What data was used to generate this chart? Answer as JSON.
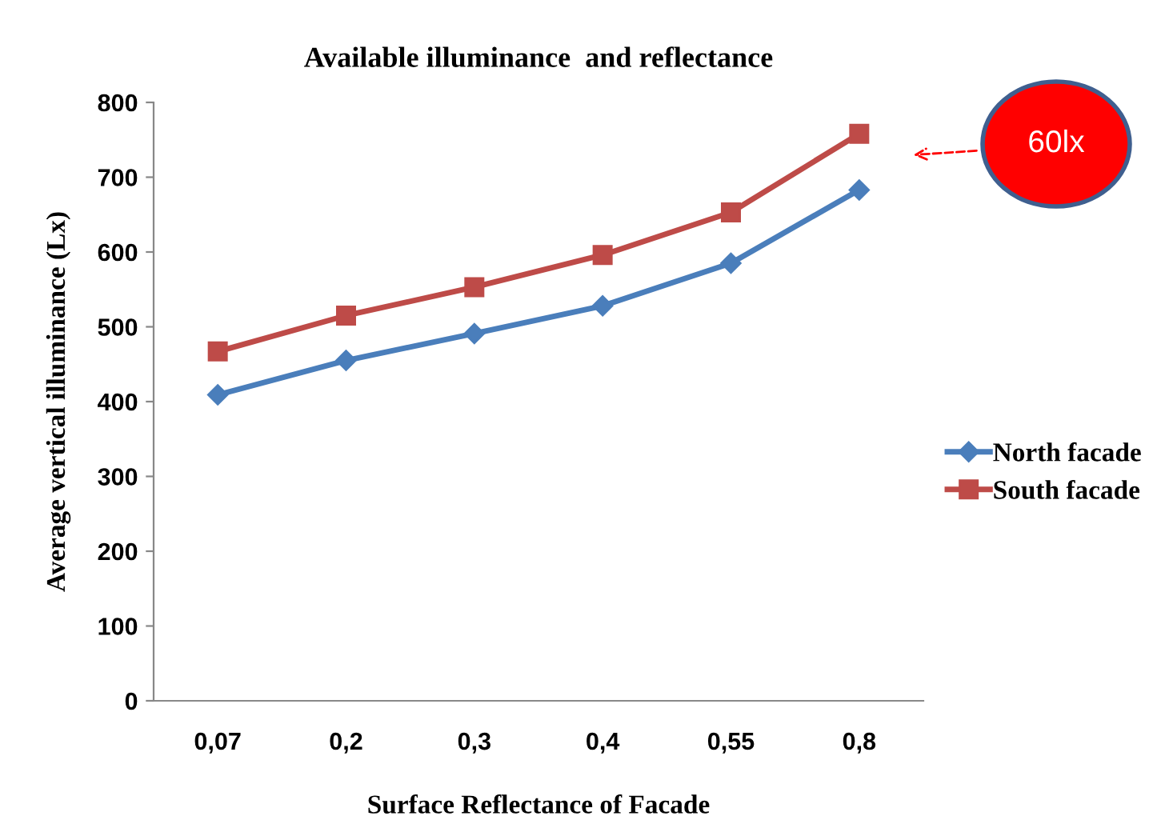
{
  "chart_data": {
    "type": "line",
    "title": "Available illuminance  and reflectance",
    "xlabel": "Surface Reflectance of Facade",
    "ylabel": "Average vertical illuminance (Lx)",
    "categories": [
      "0,07",
      "0,2",
      "0,3",
      "0,4",
      "0,55",
      "0,8"
    ],
    "series": [
      {
        "name": "North facade",
        "color": "#4a7ebb",
        "marker": "diamond",
        "values": [
          409,
          455,
          491,
          528,
          585,
          683
        ]
      },
      {
        "name": "South facade",
        "color": "#be4b48",
        "marker": "square",
        "values": [
          467,
          515,
          553,
          596,
          653,
          758
        ]
      }
    ],
    "ylim": [
      0,
      800
    ],
    "yticks": [
      0,
      100,
      200,
      300,
      400,
      500,
      600,
      700,
      800
    ],
    "grid": false,
    "legend": "right",
    "line_style": "solid",
    "annotations": [
      "60lx"
    ]
  }
}
